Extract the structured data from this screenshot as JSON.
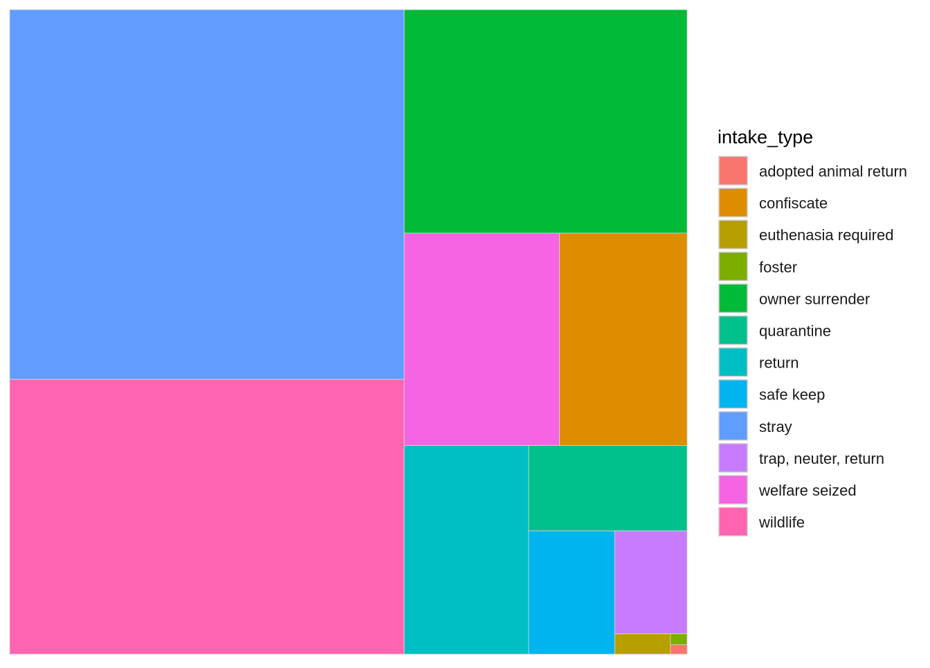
{
  "chart_data": {
    "type": "treemap",
    "legend": {
      "title": "intake_type",
      "position": "right"
    },
    "series": [
      {
        "name": "adopted animal return",
        "value": 7,
        "color": "#F8766D"
      },
      {
        "name": "confiscate",
        "value": 1200,
        "color": "#DE8C00"
      },
      {
        "name": "euthenasia required",
        "value": 50,
        "color": "#B79F00"
      },
      {
        "name": "foster",
        "value": 8,
        "color": "#7CAE00"
      },
      {
        "name": "owner surrender",
        "value": 2800,
        "color": "#00BA38"
      },
      {
        "name": "quarantine",
        "value": 600,
        "color": "#00C08B"
      },
      {
        "name": "return",
        "value": 1150,
        "color": "#00BFC4"
      },
      {
        "name": "safe keep",
        "value": 470,
        "color": "#00B4F0"
      },
      {
        "name": "stray",
        "value": 6460,
        "color": "#619CFF"
      },
      {
        "name": "trap, neuter, return",
        "value": 330,
        "color": "#C77CFF"
      },
      {
        "name": "welfare seized",
        "value": 1460,
        "color": "#F564E3"
      },
      {
        "name": "wildlife",
        "value": 4800,
        "color": "#FF64B0"
      }
    ]
  }
}
